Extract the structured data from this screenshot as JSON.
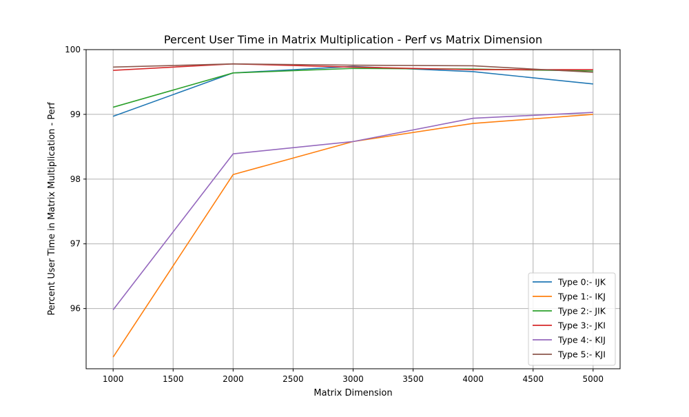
{
  "chart_data": {
    "type": "line",
    "title": "Percent User Time in Matrix Multiplication - Perf vs Matrix Dimension",
    "xlabel": "Matrix Dimension",
    "ylabel": "Percent User Time in Matrix Multiplication - Perf",
    "x": [
      1000,
      2000,
      3000,
      4000,
      5000
    ],
    "xlim": [
      775,
      5225
    ],
    "ylim": [
      95.07,
      100.0
    ],
    "xticks": [
      1000,
      1500,
      2000,
      2500,
      3000,
      3500,
      4000,
      4500,
      5000
    ],
    "yticks": [
      96,
      97,
      98,
      99,
      100
    ],
    "grid": true,
    "legend_position": "lower-right",
    "series": [
      {
        "name": "Type 0:- IJK",
        "color": "#1f77b4",
        "values": [
          98.97,
          99.64,
          99.74,
          99.66,
          99.47
        ]
      },
      {
        "name": "Type 1:- IKJ",
        "color": "#ff7f0e",
        "values": [
          95.25,
          98.07,
          98.58,
          98.86,
          99.0
        ]
      },
      {
        "name": "Type 2:- JIK",
        "color": "#2ca02c",
        "values": [
          99.11,
          99.64,
          99.71,
          99.7,
          99.67
        ]
      },
      {
        "name": "Type 3:- JKI",
        "color": "#d62728",
        "values": [
          99.68,
          99.78,
          99.73,
          99.69,
          99.69
        ]
      },
      {
        "name": "Type 4:- KIJ",
        "color": "#9467bd",
        "values": [
          95.98,
          98.39,
          98.58,
          98.94,
          99.03
        ]
      },
      {
        "name": "Type 5:- KJI",
        "color": "#8c564b",
        "values": [
          99.73,
          99.78,
          99.76,
          99.75,
          99.65
        ]
      }
    ]
  }
}
